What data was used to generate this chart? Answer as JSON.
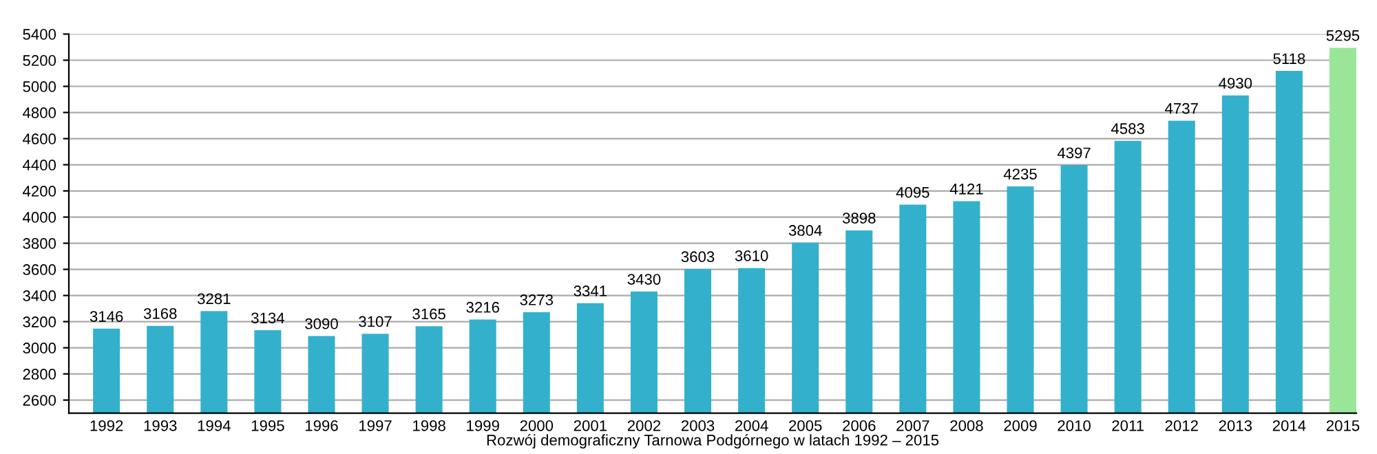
{
  "chart_data": {
    "type": "bar",
    "xlabel": "Rozwój demograficzny Tarnowa Podgórnego w latach 1992 – 2015",
    "categories": [
      "1992",
      "1993",
      "1994",
      "1995",
      "1996",
      "1997",
      "1998",
      "1999",
      "2000",
      "2001",
      "2002",
      "2003",
      "2004",
      "2005",
      "2006",
      "2007",
      "2008",
      "2009",
      "2010",
      "2011",
      "2012",
      "2013",
      "2014",
      "2015"
    ],
    "values": [
      3146,
      3168,
      3281,
      3134,
      3090,
      3107,
      3165,
      3216,
      3273,
      3341,
      3430,
      3603,
      3610,
      3804,
      3898,
      4095,
      4121,
      4235,
      4397,
      4583,
      4737,
      4930,
      5118,
      5295
    ],
    "colors": [
      "#33b1cc",
      "#33b1cc",
      "#33b1cc",
      "#33b1cc",
      "#33b1cc",
      "#33b1cc",
      "#33b1cc",
      "#33b1cc",
      "#33b1cc",
      "#33b1cc",
      "#33b1cc",
      "#33b1cc",
      "#33b1cc",
      "#33b1cc",
      "#33b1cc",
      "#33b1cc",
      "#33b1cc",
      "#33b1cc",
      "#33b1cc",
      "#33b1cc",
      "#33b1cc",
      "#33b1cc",
      "#33b1cc",
      "#99e699"
    ],
    "ylim": [
      2500,
      5400
    ],
    "yticks": [
      2600,
      2800,
      3000,
      3200,
      3400,
      3600,
      3800,
      4000,
      4200,
      4400,
      4600,
      4800,
      5000,
      5200,
      5400
    ],
    "grid": "y",
    "data_labels": true
  }
}
